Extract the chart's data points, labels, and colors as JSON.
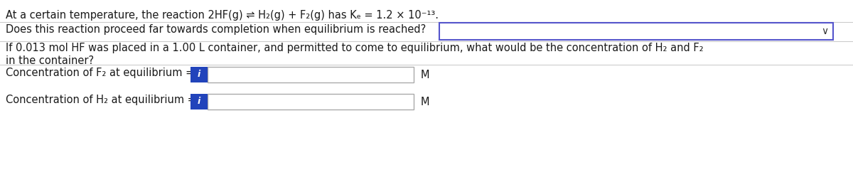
{
  "bg_color": "#ffffff",
  "separator_color": "#cccccc",
  "text_color": "#1a1a1a",
  "line1": "At a certain temperature, the reaction 2HF(g) ⇌ H₂(g) + F₂(g) has Kₑ = 1.2 × 10⁻¹³.",
  "line2": "Does this reaction proceed far towards completion when equilibrium is reached?",
  "line3": "If 0.013 mol HF was placed in a 1.00 L container, and permitted to come to equilibrium, what would be the concentration of H₂ and F₂",
  "line3b": "in the container?",
  "label_f2": "Concentration of F₂ at equilibrium =",
  "label_h2": "Concentration of H₂ at equilibrium =",
  "unit": "M",
  "dropdown_bg": "#ffffff",
  "dropdown_border": "#5555cc",
  "input_bg": "#ffffff",
  "input_border": "#aaaaaa",
  "info_btn_color": "#2244bb",
  "chevron_color": "#333333",
  "font_size": 10.5
}
